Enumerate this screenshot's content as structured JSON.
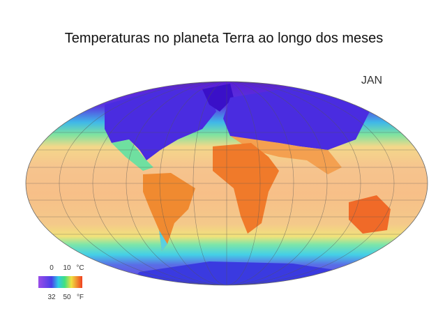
{
  "title": "Temperaturas no planeta Terra ao longo dos meses",
  "month": "JAN",
  "legend": {
    "celsius": [
      0,
      10
    ],
    "celsius_unit": "°C",
    "fahrenheit": [
      32,
      50
    ],
    "fahrenheit_unit": "°F"
  }
}
